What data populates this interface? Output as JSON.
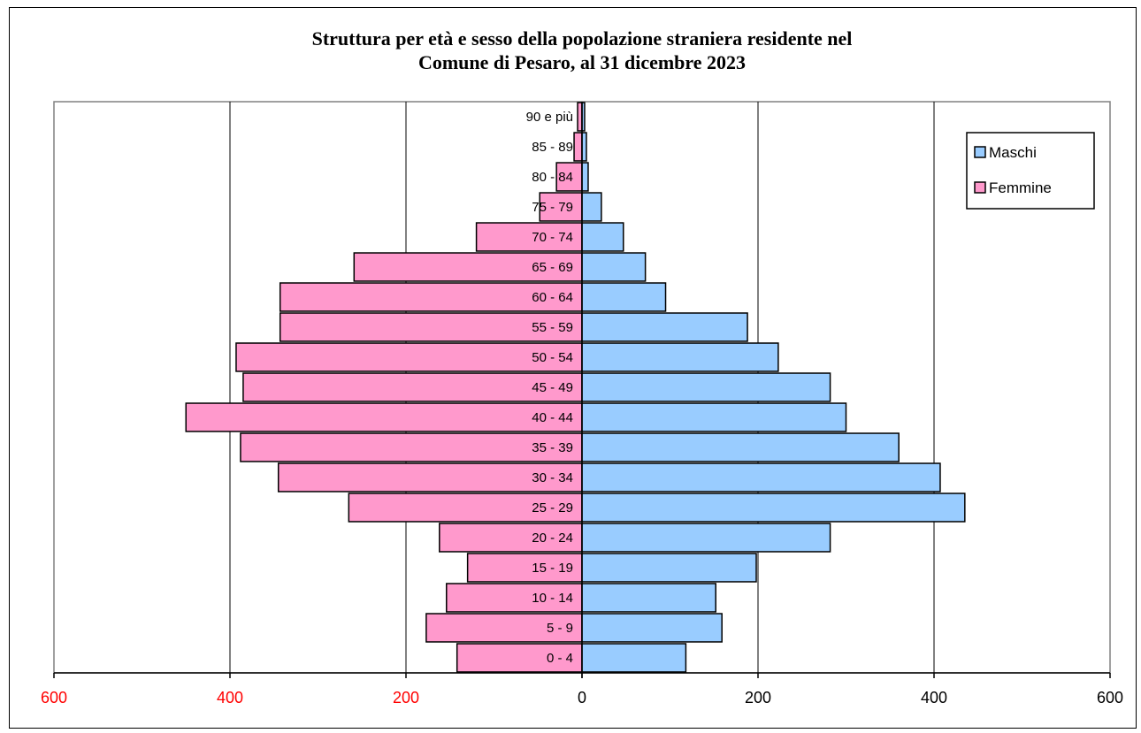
{
  "chart_data": {
    "type": "bar",
    "orientation": "horizontal",
    "title": "Struttura per età e sesso della popolazione straniera residente nel",
    "subtitle": "Comune di Pesaro, al 31 dicembre 2023",
    "categories": [
      "0 - 4",
      "5 - 9",
      "10 - 14",
      "15 - 19",
      "20 - 24",
      "25 - 29",
      "30 - 34",
      "35 - 39",
      "40 - 44",
      "45 - 49",
      "50 - 54",
      "55 - 59",
      "60 - 64",
      "65 - 69",
      "70 - 74",
      "75 - 79",
      "80 - 84",
      "85 - 89",
      "90 e più"
    ],
    "series": [
      {
        "name": "Maschi",
        "color": "#99ccff",
        "values": [
          118,
          159,
          152,
          198,
          282,
          435,
          407,
          360,
          300,
          282,
          223,
          188,
          95,
          72,
          47,
          22,
          7,
          5,
          3
        ]
      },
      {
        "name": "Femmine",
        "color": "#ff99cc",
        "values": [
          142,
          177,
          154,
          130,
          162,
          265,
          345,
          388,
          450,
          385,
          393,
          343,
          343,
          259,
          120,
          48,
          29,
          9,
          5
        ]
      }
    ],
    "x_ticks": [
      "600",
      "400",
      "200",
      "0",
      "200",
      "400",
      "600"
    ],
    "xlim": [
      -600,
      600
    ],
    "x_tick_colors": [
      "#ff0000",
      "#ff0000",
      "#ff0000",
      "#000000",
      "#000000",
      "#000000",
      "#000000"
    ],
    "grid": true,
    "legend_position": "top-right"
  }
}
